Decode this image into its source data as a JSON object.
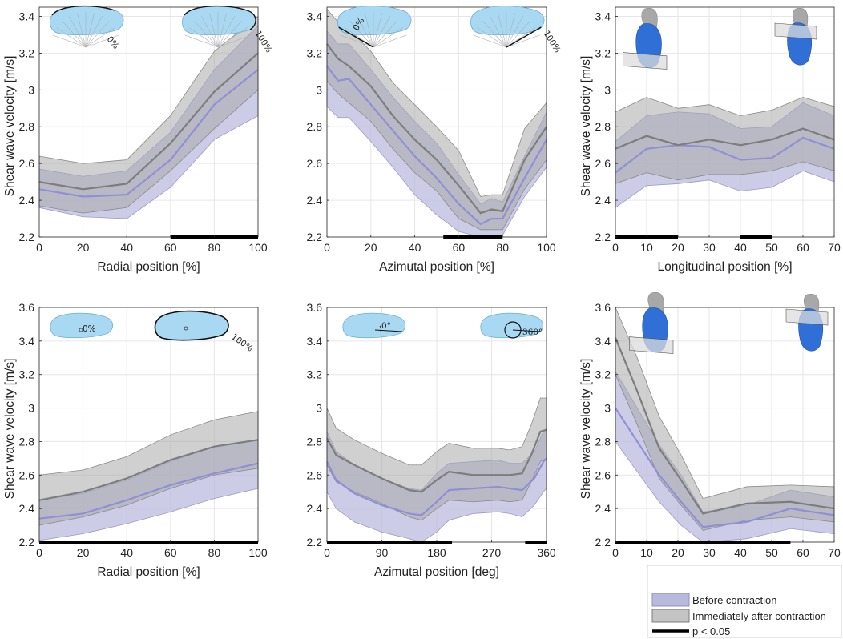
{
  "figure": {
    "legend": {
      "items": [
        {
          "label": "Before contraction",
          "kind": "band",
          "fill": "#b9b9dc",
          "stroke": "#8f8fbf"
        },
        {
          "label": "Immediately after contraction",
          "kind": "band",
          "fill": "#c4c4c4",
          "stroke": "#7d7d7d"
        },
        {
          "label": "p < 0.05",
          "kind": "line",
          "color": "#000000"
        }
      ]
    }
  },
  "chart_data": [
    {
      "type": "line",
      "xlabel": "Radial position [%]",
      "ylabel": "Shear wave velocity [m/s]",
      "xlim": [
        0,
        100
      ],
      "ylim": [
        2.2,
        3.45
      ],
      "xticks": [
        0,
        20,
        40,
        60,
        80,
        100
      ],
      "yticks": [
        2.2,
        2.4,
        2.6,
        2.8,
        3,
        3.2,
        3.4
      ],
      "insets": {
        "type": "fan",
        "labels": [
          "0%",
          "100%"
        ]
      },
      "series": [
        {
          "name": "Before contraction",
          "x": [
            0,
            20,
            40,
            60,
            80,
            100
          ],
          "mean": [
            2.46,
            2.42,
            2.43,
            2.62,
            2.92,
            3.11
          ],
          "lower": [
            2.36,
            2.31,
            2.3,
            2.47,
            2.73,
            2.86
          ],
          "upper": [
            2.57,
            2.53,
            2.56,
            2.77,
            3.11,
            3.35
          ]
        },
        {
          "name": "Immediately after contraction",
          "x": [
            0,
            20,
            40,
            60,
            80,
            100
          ],
          "mean": [
            2.5,
            2.46,
            2.49,
            2.71,
            2.99,
            3.2
          ],
          "lower": [
            2.37,
            2.33,
            2.36,
            2.56,
            2.79,
            3.0
          ],
          "upper": [
            2.64,
            2.6,
            2.62,
            2.86,
            3.21,
            3.4
          ]
        }
      ],
      "significance": [
        [
          60,
          100
        ]
      ]
    },
    {
      "type": "line",
      "xlabel": "Azimutal position [%]",
      "ylabel": "",
      "xlim": [
        0,
        100
      ],
      "ylim": [
        2.2,
        3.45
      ],
      "xticks": [
        0,
        20,
        40,
        60,
        80,
        100
      ],
      "yticks": [
        2.2,
        2.4,
        2.6,
        2.8,
        3,
        3.2,
        3.4
      ],
      "insets": {
        "type": "fan",
        "labels": [
          "0%",
          "100%"
        ]
      },
      "series": [
        {
          "name": "Before contraction",
          "x": [
            0,
            5,
            10,
            20,
            30,
            40,
            50,
            60,
            70,
            75,
            80,
            90,
            100
          ],
          "mean": [
            3.13,
            3.05,
            3.06,
            2.92,
            2.78,
            2.64,
            2.52,
            2.38,
            2.27,
            2.3,
            2.3,
            2.52,
            2.73
          ],
          "lower": [
            2.91,
            2.85,
            2.85,
            2.72,
            2.58,
            2.43,
            2.32,
            2.23,
            2.2,
            2.2,
            2.21,
            2.42,
            2.58
          ],
          "upper": [
            3.32,
            3.25,
            3.25,
            3.11,
            2.96,
            2.83,
            2.71,
            2.54,
            2.38,
            2.41,
            2.39,
            2.64,
            2.88
          ]
        },
        {
          "name": "Immediately after contraction",
          "x": [
            0,
            5,
            10,
            20,
            30,
            40,
            50,
            60,
            70,
            75,
            80,
            90,
            100
          ],
          "mean": [
            3.25,
            3.17,
            3.13,
            3.02,
            2.86,
            2.73,
            2.62,
            2.48,
            2.33,
            2.35,
            2.34,
            2.62,
            2.8
          ],
          "lower": [
            3.05,
            2.98,
            2.93,
            2.83,
            2.68,
            2.55,
            2.45,
            2.3,
            2.24,
            2.24,
            2.24,
            2.46,
            2.62
          ],
          "upper": [
            3.44,
            3.37,
            3.33,
            3.21,
            3.04,
            2.92,
            2.8,
            2.67,
            2.42,
            2.43,
            2.43,
            2.79,
            2.93
          ]
        }
      ],
      "significance": [
        [
          53,
          80
        ]
      ]
    },
    {
      "type": "line",
      "xlabel": "Longitudinal position [%]",
      "ylabel": "Shear wave velocity [m/s]",
      "xlim": [
        0,
        70
      ],
      "ylim": [
        2.2,
        3.45
      ],
      "xticks": [
        0,
        10,
        20,
        30,
        40,
        50,
        60,
        70
      ],
      "yticks": [
        2.2,
        2.4,
        2.6,
        2.8,
        3,
        3.2,
        3.4
      ],
      "insets": {
        "type": "3d-muscle",
        "labels": []
      },
      "series": [
        {
          "name": "Before contraction",
          "x": [
            0,
            10,
            20,
            30,
            40,
            50,
            60,
            70
          ],
          "mean": [
            2.55,
            2.68,
            2.7,
            2.69,
            2.62,
            2.63,
            2.74,
            2.68
          ],
          "lower": [
            2.36,
            2.48,
            2.49,
            2.51,
            2.45,
            2.47,
            2.56,
            2.5
          ],
          "upper": [
            2.72,
            2.86,
            2.88,
            2.87,
            2.79,
            2.8,
            2.93,
            2.86
          ]
        },
        {
          "name": "Immediately after contraction",
          "x": [
            0,
            10,
            20,
            30,
            40,
            50,
            60,
            70
          ],
          "mean": [
            2.68,
            2.75,
            2.7,
            2.73,
            2.7,
            2.73,
            2.79,
            2.73
          ],
          "lower": [
            2.49,
            2.55,
            2.51,
            2.54,
            2.54,
            2.56,
            2.61,
            2.56
          ],
          "upper": [
            2.88,
            2.96,
            2.9,
            2.92,
            2.86,
            2.89,
            2.96,
            2.91
          ]
        }
      ],
      "significance": [
        [
          0,
          20
        ],
        [
          40,
          50
        ]
      ]
    },
    {
      "type": "line",
      "xlabel": "Radial position [%]",
      "ylabel": "Shear wave velocity [m/s]",
      "xlim": [
        0,
        100
      ],
      "ylim": [
        2.2,
        3.6
      ],
      "xticks": [
        0,
        20,
        40,
        60,
        80,
        100
      ],
      "yticks": [
        2.2,
        2.4,
        2.6,
        2.8,
        3,
        3.2,
        3.4,
        3.6
      ],
      "insets": {
        "type": "shape",
        "labels": [
          "0%",
          "100%"
        ]
      },
      "series": [
        {
          "name": "Before contraction",
          "x": [
            0,
            20,
            40,
            60,
            80,
            100
          ],
          "mean": [
            2.34,
            2.37,
            2.45,
            2.54,
            2.61,
            2.67
          ],
          "lower": [
            2.21,
            2.25,
            2.31,
            2.38,
            2.46,
            2.52
          ],
          "upper": [
            2.45,
            2.49,
            2.57,
            2.68,
            2.77,
            2.81
          ]
        },
        {
          "name": "Immediately after contraction",
          "x": [
            0,
            20,
            40,
            60,
            80,
            100
          ],
          "mean": [
            2.45,
            2.5,
            2.58,
            2.69,
            2.77,
            2.81
          ],
          "lower": [
            2.3,
            2.35,
            2.42,
            2.52,
            2.6,
            2.64
          ],
          "upper": [
            2.6,
            2.63,
            2.71,
            2.84,
            2.93,
            2.98
          ]
        }
      ],
      "significance": [
        [
          0,
          100
        ]
      ]
    },
    {
      "type": "line",
      "xlabel": "Azimutal position [deg]",
      "ylabel": "",
      "xlim": [
        0,
        360
      ],
      "ylim": [
        2.2,
        3.6
      ],
      "xticks": [
        0,
        90,
        180,
        270,
        360
      ],
      "yticks": [
        2.2,
        2.4,
        2.6,
        2.8,
        3,
        3.2,
        3.4,
        3.6
      ],
      "insets": {
        "type": "angle",
        "labels": [
          "0°",
          "360°"
        ]
      },
      "series": [
        {
          "name": "Before contraction",
          "x": [
            0,
            15,
            45,
            90,
            135,
            155,
            180,
            200,
            240,
            280,
            300,
            320,
            340,
            355,
            360
          ],
          "mean": [
            2.68,
            2.57,
            2.49,
            2.42,
            2.37,
            2.36,
            2.44,
            2.51,
            2.52,
            2.53,
            2.52,
            2.51,
            2.58,
            2.68,
            2.7
          ],
          "lower": [
            2.5,
            2.4,
            2.32,
            2.26,
            2.22,
            2.2,
            2.26,
            2.33,
            2.37,
            2.38,
            2.37,
            2.35,
            2.42,
            2.5,
            2.52
          ],
          "upper": [
            2.86,
            2.74,
            2.66,
            2.58,
            2.52,
            2.51,
            2.61,
            2.67,
            2.68,
            2.69,
            2.67,
            2.67,
            2.74,
            2.86,
            2.88
          ]
        },
        {
          "name": "Immediately after contraction",
          "x": [
            0,
            15,
            45,
            90,
            135,
            155,
            180,
            200,
            240,
            280,
            300,
            320,
            335,
            350,
            360
          ],
          "mean": [
            2.82,
            2.72,
            2.66,
            2.58,
            2.51,
            2.5,
            2.57,
            2.62,
            2.6,
            2.6,
            2.6,
            2.61,
            2.72,
            2.86,
            2.87
          ],
          "lower": [
            2.66,
            2.56,
            2.5,
            2.43,
            2.35,
            2.33,
            2.4,
            2.45,
            2.44,
            2.45,
            2.44,
            2.45,
            2.56,
            2.68,
            2.7
          ],
          "upper": [
            3.0,
            2.88,
            2.81,
            2.73,
            2.66,
            2.66,
            2.74,
            2.79,
            2.76,
            2.76,
            2.75,
            2.77,
            2.9,
            3.06,
            3.06
          ]
        }
      ],
      "significance": [
        [
          0,
          205
        ],
        [
          325,
          360
        ]
      ]
    },
    {
      "type": "line",
      "xlabel": "Longitudinal position [%]",
      "ylabel": "Shear wave velocity [m/s]",
      "xlim": [
        0,
        70
      ],
      "ylim": [
        2.2,
        3.6
      ],
      "xticks": [
        0,
        10,
        20,
        30,
        40,
        50,
        60,
        70
      ],
      "yticks": [
        2.2,
        2.4,
        2.6,
        2.8,
        3,
        3.2,
        3.4,
        3.6
      ],
      "insets": {
        "type": "3d-muscle",
        "labels": []
      },
      "series": [
        {
          "name": "Before contraction",
          "x": [
            0,
            7,
            14,
            21,
            28,
            42,
            56,
            70
          ],
          "mean": [
            3.0,
            2.8,
            2.6,
            2.44,
            2.29,
            2.32,
            2.4,
            2.36
          ],
          "lower": [
            2.8,
            2.62,
            2.44,
            2.3,
            2.2,
            2.22,
            2.28,
            2.25
          ],
          "upper": [
            3.22,
            3.0,
            2.78,
            2.6,
            2.38,
            2.42,
            2.51,
            2.47
          ]
        },
        {
          "name": "Immediately after contraction",
          "x": [
            0,
            7,
            14,
            21,
            28,
            42,
            56,
            70
          ],
          "mean": [
            3.42,
            3.1,
            2.76,
            2.57,
            2.37,
            2.43,
            2.44,
            2.4
          ],
          "lower": [
            3.2,
            2.9,
            2.58,
            2.42,
            2.27,
            2.33,
            2.35,
            2.32
          ],
          "upper": [
            3.6,
            3.3,
            2.95,
            2.72,
            2.46,
            2.53,
            2.54,
            2.53
          ]
        }
      ],
      "significance": [
        [
          0,
          56
        ]
      ]
    }
  ]
}
